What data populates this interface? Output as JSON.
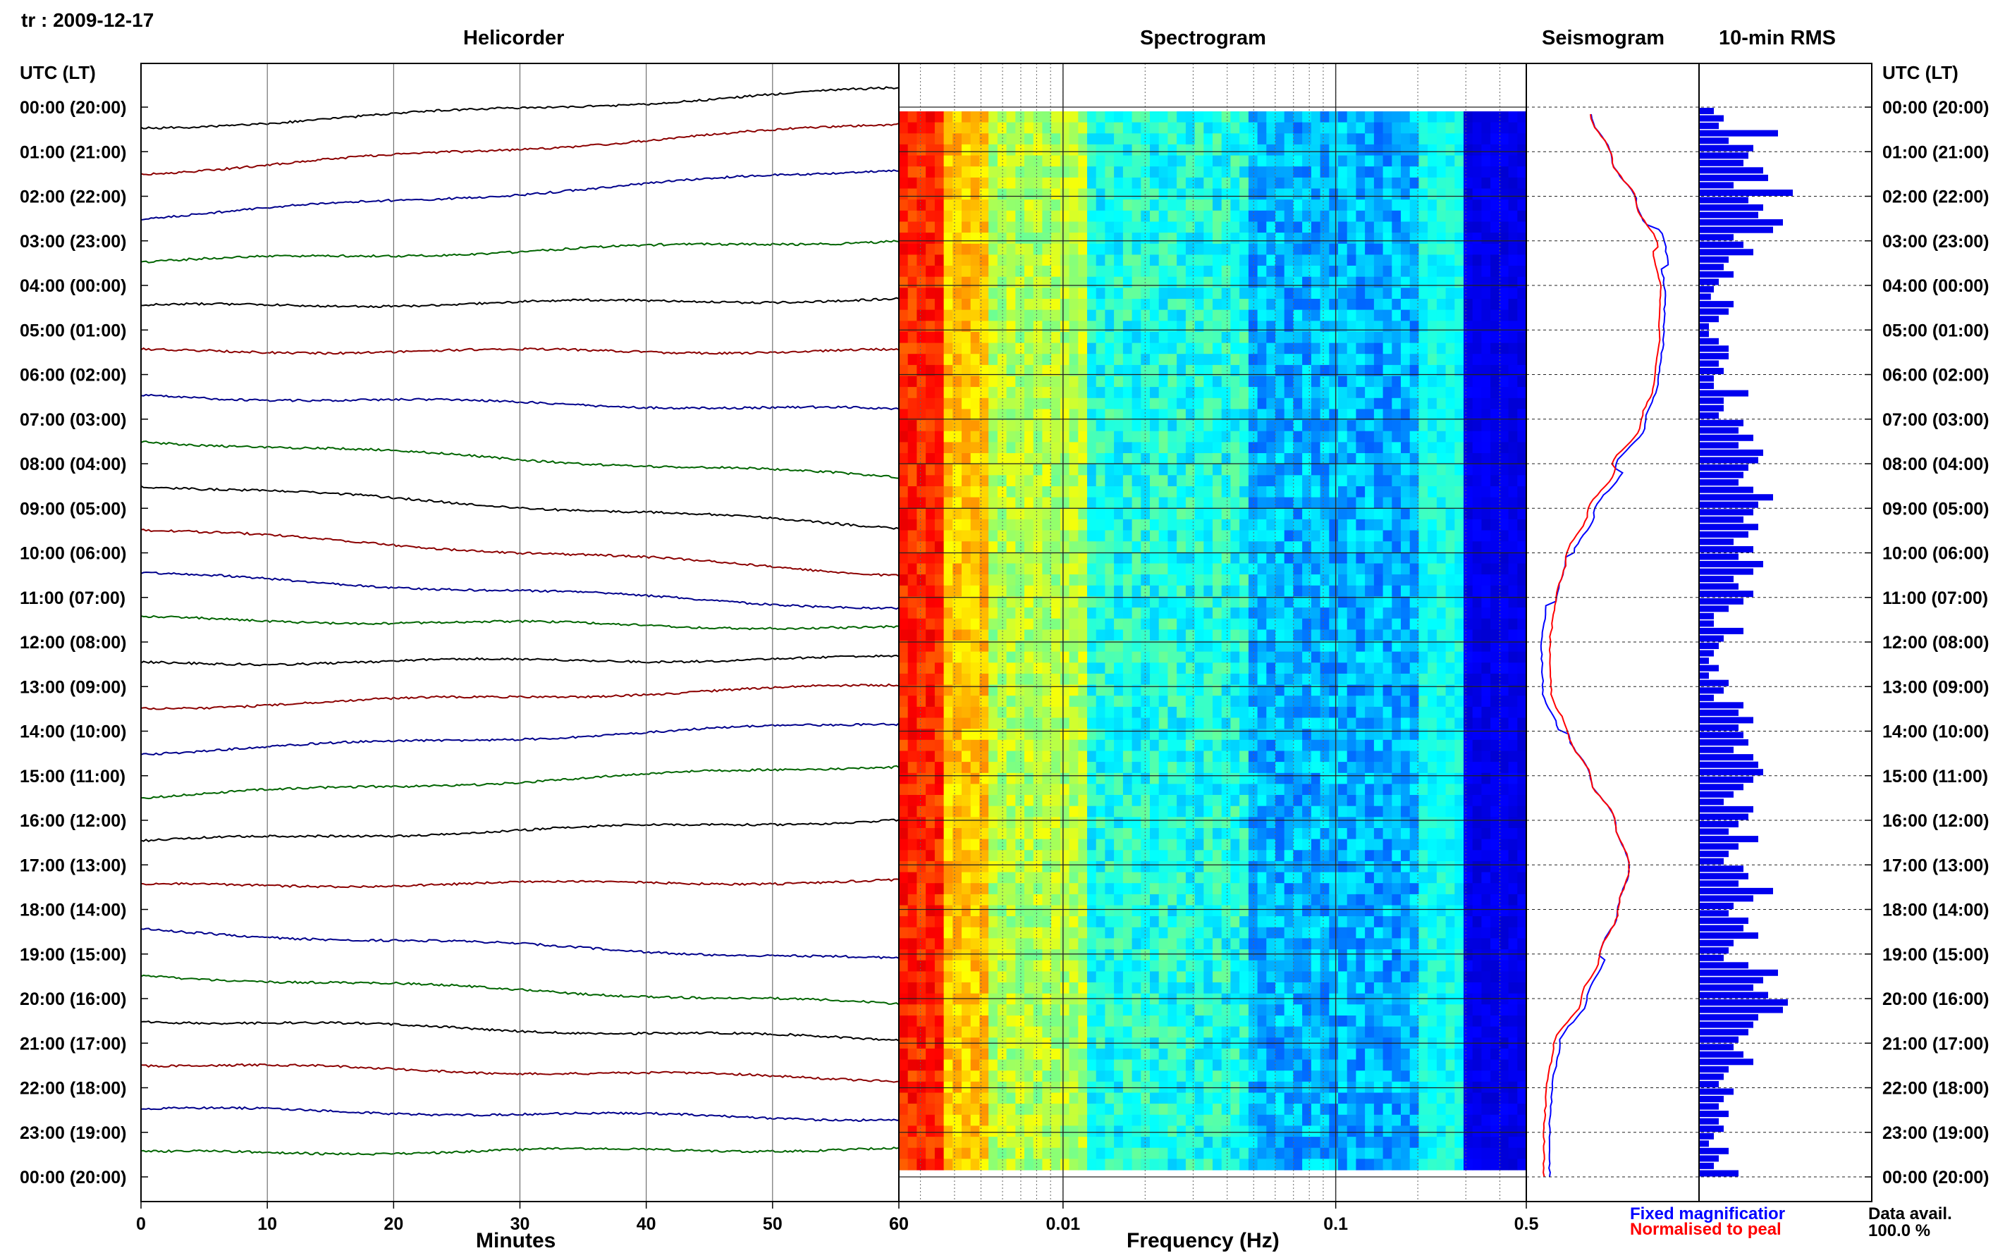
{
  "header": {
    "station_date": "tr : 2009-12-17",
    "utc_lt_label": "UTC (LT)",
    "right_utc_lt_label": "UTC (LT)"
  },
  "panels": {
    "helicorder": "Helicorder",
    "spectrogram": "Spectrogram",
    "seismogram": "Seismogram",
    "rms": "10-min RMS"
  },
  "axes": {
    "minutes_label": "Minutes",
    "minutes_ticks": [
      "0",
      "10",
      "20",
      "30",
      "40",
      "50",
      "60"
    ],
    "frequency_label": "Frequency (Hz)",
    "frequency_ticks": [
      "0.01",
      "0.1",
      "0.5"
    ]
  },
  "time_labels": [
    "00:00 (20:00)",
    "01:00 (21:00)",
    "02:00 (22:00)",
    "03:00 (23:00)",
    "04:00 (00:00)",
    "05:00 (01:00)",
    "06:00 (02:00)",
    "07:00 (03:00)",
    "08:00 (04:00)",
    "09:00 (05:00)",
    "10:00 (06:00)",
    "11:00 (07:00)",
    "12:00 (08:00)",
    "13:00 (09:00)",
    "14:00 (10:00)",
    "15:00 (11:00)",
    "16:00 (12:00)",
    "17:00 (13:00)",
    "18:00 (14:00)",
    "19:00 (15:00)",
    "20:00 (16:00)",
    "21:00 (17:00)",
    "22:00 (18:00)",
    "23:00 (19:00)",
    "00:00 (20:00)"
  ],
  "legend": {
    "fixed": "Fixed magnificatior",
    "normalised": "Normalised to peal",
    "fixed_color": "#0000ff",
    "normalised_color": "#ff0000"
  },
  "data_avail": {
    "label": "Data avail.",
    "value": "100.0 %"
  },
  "colors": {
    "trace_cycle": [
      "#000000",
      "#8b0000",
      "#00008b",
      "#006400"
    ],
    "rms_bar": "#0000ee",
    "grid": "#000000"
  },
  "chart_data": [
    {
      "type": "line",
      "title": "Helicorder",
      "xlabel": "Minutes",
      "xlim": [
        0,
        60
      ],
      "hours": 24,
      "trace_colors_cycle": [
        "black",
        "darkred",
        "darkblue",
        "darkgreen"
      ],
      "series_slopes": [
        0.8,
        1.0,
        1.0,
        0.45,
        0.15,
        0.0,
        -0.3,
        -0.75,
        -0.85,
        -0.9,
        -0.7,
        -0.2,
        0.1,
        0.45,
        0.6,
        0.65,
        0.45,
        0.1,
        -0.6,
        -0.6,
        -0.4,
        -0.3,
        -0.2,
        0.1
      ]
    },
    {
      "type": "heatmap",
      "title": "Spectrogram",
      "xlabel": "Frequency (Hz)",
      "x_scale": "log",
      "xlim": [
        0.0025,
        0.5
      ],
      "colormap": "jet"
    },
    {
      "type": "line",
      "title": "Seismogram",
      "series": [
        {
          "name": "Fixed magnificatior",
          "color": "blue"
        },
        {
          "name": "Normalised to peal",
          "color": "red"
        }
      ],
      "hourly_level": [
        0.38,
        0.55,
        0.75,
        0.92,
        0.98,
        0.97,
        0.93,
        0.82,
        0.58,
        0.35,
        0.18,
        0.1,
        0.06,
        0.07,
        0.2,
        0.38,
        0.58,
        0.69,
        0.6,
        0.45,
        0.3,
        0.08,
        0.02,
        0.0,
        0.0
      ]
    },
    {
      "type": "bar",
      "title": "10-min RMS",
      "orientation": "horizontal",
      "values": [
        0.15,
        0.25,
        0.2,
        0.8,
        0.3,
        0.55,
        0.5,
        0.45,
        0.65,
        0.7,
        0.35,
        0.95,
        0.5,
        0.65,
        0.6,
        0.85,
        0.75,
        0.35,
        0.45,
        0.55,
        0.3,
        0.25,
        0.35,
        0.2,
        0.15,
        0.12,
        0.35,
        0.3,
        0.2,
        0.1,
        0.1,
        0.2,
        0.3,
        0.3,
        0.2,
        0.25,
        0.15,
        0.15,
        0.5,
        0.25,
        0.25,
        0.2,
        0.45,
        0.4,
        0.55,
        0.4,
        0.65,
        0.6,
        0.5,
        0.45,
        0.4,
        0.55,
        0.75,
        0.6,
        0.55,
        0.45,
        0.6,
        0.5,
        0.35,
        0.55,
        0.4,
        0.65,
        0.55,
        0.35,
        0.4,
        0.55,
        0.45,
        0.3,
        0.15,
        0.15,
        0.45,
        0.25,
        0.2,
        0.15,
        0.1,
        0.2,
        0.1,
        0.3,
        0.25,
        0.15,
        0.45,
        0.4,
        0.55,
        0.4,
        0.45,
        0.5,
        0.35,
        0.55,
        0.6,
        0.65,
        0.55,
        0.45,
        0.35,
        0.25,
        0.55,
        0.5,
        0.4,
        0.3,
        0.6,
        0.4,
        0.3,
        0.25,
        0.45,
        0.5,
        0.4,
        0.75,
        0.55,
        0.35,
        0.3,
        0.5,
        0.45,
        0.6,
        0.35,
        0.3,
        0.25,
        0.5,
        0.8,
        0.65,
        0.55,
        0.7,
        0.9,
        0.85,
        0.6,
        0.55,
        0.5,
        0.4,
        0.35,
        0.45,
        0.55,
        0.3,
        0.25,
        0.2,
        0.35,
        0.25,
        0.2,
        0.3,
        0.2,
        0.25,
        0.15,
        0.1,
        0.3,
        0.2,
        0.15,
        0.4
      ],
      "xlim": [
        0,
        1
      ]
    }
  ]
}
